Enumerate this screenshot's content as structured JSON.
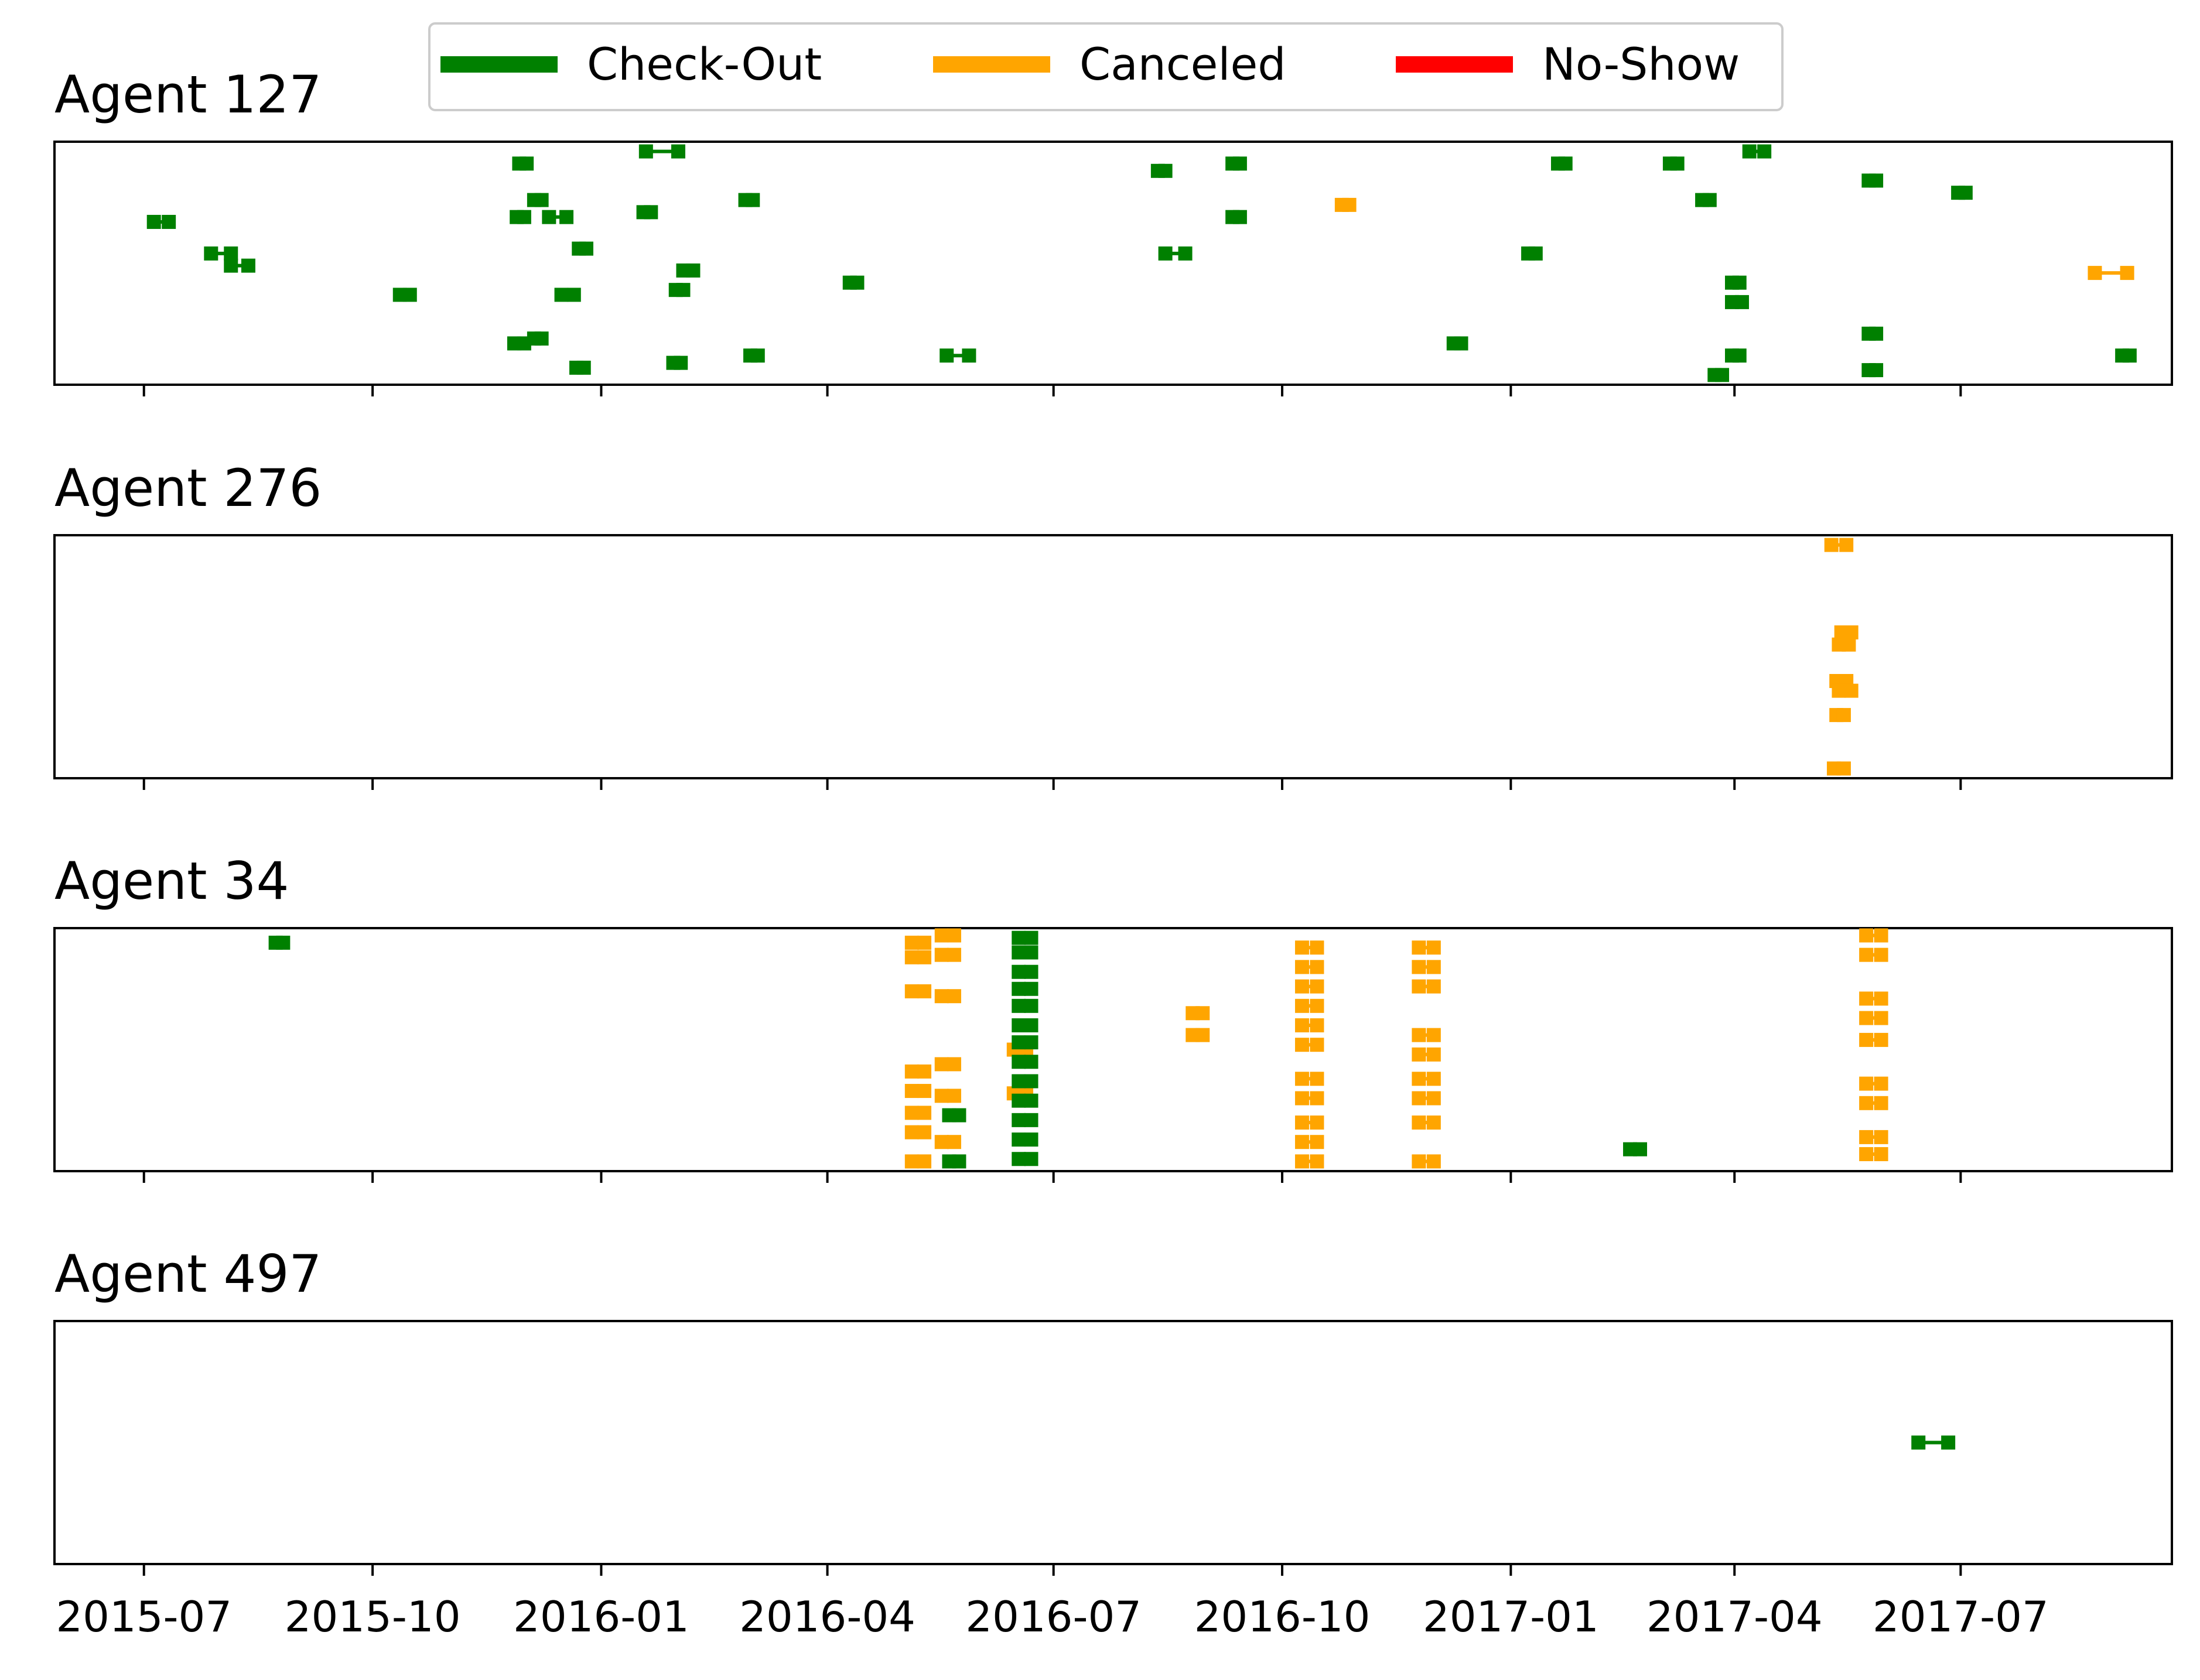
{
  "chart_data": {
    "type": "scatter",
    "legend": {
      "placement": "top-center",
      "items": [
        {
          "label": "Check-Out",
          "color": "#008000"
        },
        {
          "label": "Canceled",
          "color": "#ffa500"
        },
        {
          "label": "No-Show",
          "color": "#ff0000"
        }
      ]
    },
    "x_axis": {
      "range": [
        "2015-05-26",
        "2017-09-24"
      ],
      "ticks": [
        "2015-07-01",
        "2015-10-01",
        "2016-01-01",
        "2016-04-01",
        "2016-07-01",
        "2016-10-01",
        "2017-01-01",
        "2017-04-01",
        "2017-07-01"
      ],
      "tick_labels": [
        "2015-07",
        "2015-10",
        "2016-01",
        "2016-04",
        "2016-07",
        "2016-10",
        "2017-01",
        "2017-04",
        "2017-07"
      ]
    },
    "y_axis": {
      "range": [
        0,
        1
      ],
      "ticks": []
    },
    "grid": false,
    "panels": [
      {
        "title": "Agent 127",
        "stays": [
          {
            "start": "2015-07-05",
            "end": "2015-07-11",
            "y": 0.67,
            "status": "Check-Out"
          },
          {
            "start": "2015-07-28",
            "end": "2015-08-05",
            "y": 0.54,
            "status": "Check-Out"
          },
          {
            "start": "2015-08-05",
            "end": "2015-08-12",
            "y": 0.49,
            "status": "Check-Out"
          },
          {
            "start": "2015-10-12",
            "end": "2015-10-16",
            "y": 0.37,
            "status": "Check-Out"
          },
          {
            "start": "2015-11-27",
            "end": "2015-12-01",
            "y": 0.17,
            "status": "Check-Out"
          },
          {
            "start": "2015-11-28",
            "end": "2015-12-01",
            "y": 0.69,
            "status": "Check-Out"
          },
          {
            "start": "2015-11-29",
            "end": "2015-12-02",
            "y": 0.91,
            "status": "Check-Out"
          },
          {
            "start": "2015-12-05",
            "end": "2015-12-08",
            "y": 0.19,
            "status": "Check-Out"
          },
          {
            "start": "2015-12-05",
            "end": "2015-12-08",
            "y": 0.76,
            "status": "Check-Out"
          },
          {
            "start": "2015-12-11",
            "end": "2015-12-18",
            "y": 0.69,
            "status": "Check-Out"
          },
          {
            "start": "2015-12-16",
            "end": "2015-12-21",
            "y": 0.37,
            "status": "Check-Out"
          },
          {
            "start": "2015-12-22",
            "end": "2015-12-25",
            "y": 0.07,
            "status": "Check-Out"
          },
          {
            "start": "2015-12-23",
            "end": "2015-12-26",
            "y": 0.56,
            "status": "Check-Out"
          },
          {
            "start": "2016-01-18",
            "end": "2016-01-21",
            "y": 0.71,
            "status": "Check-Out"
          },
          {
            "start": "2016-01-19",
            "end": "2016-02-01",
            "y": 0.96,
            "status": "Check-Out"
          },
          {
            "start": "2016-01-30",
            "end": "2016-02-02",
            "y": 0.09,
            "status": "Check-Out"
          },
          {
            "start": "2016-01-31",
            "end": "2016-02-03",
            "y": 0.39,
            "status": "Check-Out"
          },
          {
            "start": "2016-02-03",
            "end": "2016-02-07",
            "y": 0.47,
            "status": "Check-Out"
          },
          {
            "start": "2016-02-28",
            "end": "2016-03-02",
            "y": 0.76,
            "status": "Check-Out"
          },
          {
            "start": "2016-03-01",
            "end": "2016-03-04",
            "y": 0.12,
            "status": "Check-Out"
          },
          {
            "start": "2016-04-10",
            "end": "2016-04-13",
            "y": 0.42,
            "status": "Check-Out"
          },
          {
            "start": "2016-05-19",
            "end": "2016-05-28",
            "y": 0.12,
            "status": "Check-Out"
          },
          {
            "start": "2016-08-12",
            "end": "2016-08-15",
            "y": 0.88,
            "status": "Check-Out"
          },
          {
            "start": "2016-08-15",
            "end": "2016-08-23",
            "y": 0.54,
            "status": "Check-Out"
          },
          {
            "start": "2016-09-11",
            "end": "2016-09-14",
            "y": 0.91,
            "status": "Check-Out"
          },
          {
            "start": "2016-09-11",
            "end": "2016-09-14",
            "y": 0.69,
            "status": "Check-Out"
          },
          {
            "start": "2016-10-25",
            "end": "2016-10-28",
            "y": 0.74,
            "status": "Canceled"
          },
          {
            "start": "2016-12-09",
            "end": "2016-12-12",
            "y": 0.17,
            "status": "Check-Out"
          },
          {
            "start": "2017-01-08",
            "end": "2017-01-11",
            "y": 0.54,
            "status": "Check-Out"
          },
          {
            "start": "2017-01-20",
            "end": "2017-01-23",
            "y": 0.91,
            "status": "Check-Out"
          },
          {
            "start": "2017-03-06",
            "end": "2017-03-09",
            "y": 0.91,
            "status": "Check-Out"
          },
          {
            "start": "2017-03-19",
            "end": "2017-03-22",
            "y": 0.76,
            "status": "Check-Out"
          },
          {
            "start": "2017-03-24",
            "end": "2017-03-27",
            "y": 0.04,
            "status": "Check-Out"
          },
          {
            "start": "2017-03-31",
            "end": "2017-04-03",
            "y": 0.12,
            "status": "Check-Out"
          },
          {
            "start": "2017-03-31",
            "end": "2017-04-03",
            "y": 0.42,
            "status": "Check-Out"
          },
          {
            "start": "2017-03-31",
            "end": "2017-04-04",
            "y": 0.34,
            "status": "Check-Out"
          },
          {
            "start": "2017-04-07",
            "end": "2017-04-13",
            "y": 0.96,
            "status": "Check-Out"
          },
          {
            "start": "2017-05-25",
            "end": "2017-05-28",
            "y": 0.84,
            "status": "Check-Out"
          },
          {
            "start": "2017-05-25",
            "end": "2017-05-28",
            "y": 0.21,
            "status": "Check-Out"
          },
          {
            "start": "2017-05-25",
            "end": "2017-05-28",
            "y": 0.06,
            "status": "Check-Out"
          },
          {
            "start": "2017-06-30",
            "end": "2017-07-03",
            "y": 0.79,
            "status": "Check-Out"
          },
          {
            "start": "2017-08-24",
            "end": "2017-09-06",
            "y": 0.46,
            "status": "Canceled"
          },
          {
            "start": "2017-09-04",
            "end": "2017-09-07",
            "y": 0.12,
            "status": "Check-Out"
          }
        ]
      },
      {
        "title": "Agent 276",
        "stays": [
          {
            "start": "2017-05-10",
            "end": "2017-05-16",
            "y": 0.96,
            "status": "Canceled"
          },
          {
            "start": "2017-05-14",
            "end": "2017-05-18",
            "y": 0.6,
            "status": "Canceled"
          },
          {
            "start": "2017-05-13",
            "end": "2017-05-17",
            "y": 0.55,
            "status": "Canceled"
          },
          {
            "start": "2017-05-12",
            "end": "2017-05-16",
            "y": 0.4,
            "status": "Canceled"
          },
          {
            "start": "2017-05-13",
            "end": "2017-05-18",
            "y": 0.36,
            "status": "Canceled"
          },
          {
            "start": "2017-05-12",
            "end": "2017-05-15",
            "y": 0.26,
            "status": "Canceled"
          },
          {
            "start": "2017-05-11",
            "end": "2017-05-15",
            "y": 0.04,
            "status": "Canceled"
          }
        ]
      },
      {
        "title": "Agent 34",
        "stays": [
          {
            "start": "2015-08-23",
            "end": "2015-08-26",
            "y": 0.94,
            "status": "Check-Out"
          },
          {
            "start": "2016-05-05",
            "end": "2016-05-10",
            "y": 0.94,
            "status": "Canceled"
          },
          {
            "start": "2016-05-05",
            "end": "2016-05-10",
            "y": 0.88,
            "status": "Canceled"
          },
          {
            "start": "2016-05-05",
            "end": "2016-05-10",
            "y": 0.74,
            "status": "Canceled"
          },
          {
            "start": "2016-05-05",
            "end": "2016-05-10",
            "y": 0.41,
            "status": "Canceled"
          },
          {
            "start": "2016-05-05",
            "end": "2016-05-10",
            "y": 0.33,
            "status": "Canceled"
          },
          {
            "start": "2016-05-05",
            "end": "2016-05-10",
            "y": 0.24,
            "status": "Canceled"
          },
          {
            "start": "2016-05-05",
            "end": "2016-05-10",
            "y": 0.16,
            "status": "Canceled"
          },
          {
            "start": "2016-05-05",
            "end": "2016-05-10",
            "y": 0.04,
            "status": "Canceled"
          },
          {
            "start": "2016-05-17",
            "end": "2016-05-22",
            "y": 0.97,
            "status": "Canceled"
          },
          {
            "start": "2016-05-17",
            "end": "2016-05-22",
            "y": 0.89,
            "status": "Canceled"
          },
          {
            "start": "2016-05-17",
            "end": "2016-05-22",
            "y": 0.72,
            "status": "Canceled"
          },
          {
            "start": "2016-05-17",
            "end": "2016-05-22",
            "y": 0.44,
            "status": "Canceled"
          },
          {
            "start": "2016-05-17",
            "end": "2016-05-22",
            "y": 0.31,
            "status": "Canceled"
          },
          {
            "start": "2016-05-17",
            "end": "2016-05-22",
            "y": 0.12,
            "status": "Canceled"
          },
          {
            "start": "2016-05-20",
            "end": "2016-05-24",
            "y": 0.23,
            "status": "Check-Out"
          },
          {
            "start": "2016-05-20",
            "end": "2016-05-24",
            "y": 0.04,
            "status": "Check-Out"
          },
          {
            "start": "2016-06-15",
            "end": "2016-06-20",
            "y": 0.5,
            "status": "Canceled"
          },
          {
            "start": "2016-06-15",
            "end": "2016-06-20",
            "y": 0.32,
            "status": "Canceled"
          },
          {
            "start": "2016-06-17",
            "end": "2016-06-22",
            "y": 0.96,
            "status": "Check-Out"
          },
          {
            "start": "2016-06-17",
            "end": "2016-06-22",
            "y": 0.9,
            "status": "Check-Out"
          },
          {
            "start": "2016-06-17",
            "end": "2016-06-22",
            "y": 0.82,
            "status": "Check-Out"
          },
          {
            "start": "2016-06-17",
            "end": "2016-06-22",
            "y": 0.75,
            "status": "Check-Out"
          },
          {
            "start": "2016-06-17",
            "end": "2016-06-22",
            "y": 0.68,
            "status": "Check-Out"
          },
          {
            "start": "2016-06-17",
            "end": "2016-06-22",
            "y": 0.6,
            "status": "Check-Out"
          },
          {
            "start": "2016-06-17",
            "end": "2016-06-22",
            "y": 0.53,
            "status": "Check-Out"
          },
          {
            "start": "2016-06-17",
            "end": "2016-06-22",
            "y": 0.45,
            "status": "Check-Out"
          },
          {
            "start": "2016-06-17",
            "end": "2016-06-22",
            "y": 0.37,
            "status": "Check-Out"
          },
          {
            "start": "2016-06-17",
            "end": "2016-06-22",
            "y": 0.29,
            "status": "Check-Out"
          },
          {
            "start": "2016-06-17",
            "end": "2016-06-22",
            "y": 0.21,
            "status": "Check-Out"
          },
          {
            "start": "2016-06-17",
            "end": "2016-06-22",
            "y": 0.13,
            "status": "Check-Out"
          },
          {
            "start": "2016-06-17",
            "end": "2016-06-22",
            "y": 0.05,
            "status": "Check-Out"
          },
          {
            "start": "2016-08-26",
            "end": "2016-08-30",
            "y": 0.65,
            "status": "Canceled"
          },
          {
            "start": "2016-08-26",
            "end": "2016-08-30",
            "y": 0.56,
            "status": "Canceled"
          },
          {
            "start": "2016-10-09",
            "end": "2016-10-15",
            "y": 0.92,
            "status": "Canceled"
          },
          {
            "start": "2016-10-09",
            "end": "2016-10-15",
            "y": 0.84,
            "status": "Canceled"
          },
          {
            "start": "2016-10-09",
            "end": "2016-10-15",
            "y": 0.76,
            "status": "Canceled"
          },
          {
            "start": "2016-10-09",
            "end": "2016-10-15",
            "y": 0.68,
            "status": "Canceled"
          },
          {
            "start": "2016-10-09",
            "end": "2016-10-15",
            "y": 0.6,
            "status": "Canceled"
          },
          {
            "start": "2016-10-09",
            "end": "2016-10-15",
            "y": 0.52,
            "status": "Canceled"
          },
          {
            "start": "2016-10-09",
            "end": "2016-10-15",
            "y": 0.38,
            "status": "Canceled"
          },
          {
            "start": "2016-10-09",
            "end": "2016-10-15",
            "y": 0.3,
            "status": "Canceled"
          },
          {
            "start": "2016-10-09",
            "end": "2016-10-15",
            "y": 0.2,
            "status": "Canceled"
          },
          {
            "start": "2016-10-09",
            "end": "2016-10-15",
            "y": 0.12,
            "status": "Canceled"
          },
          {
            "start": "2016-10-09",
            "end": "2016-10-15",
            "y": 0.04,
            "status": "Canceled"
          },
          {
            "start": "2016-11-25",
            "end": "2016-12-01",
            "y": 0.92,
            "status": "Canceled"
          },
          {
            "start": "2016-11-25",
            "end": "2016-12-01",
            "y": 0.84,
            "status": "Canceled"
          },
          {
            "start": "2016-11-25",
            "end": "2016-12-01",
            "y": 0.76,
            "status": "Canceled"
          },
          {
            "start": "2016-11-25",
            "end": "2016-12-01",
            "y": 0.56,
            "status": "Canceled"
          },
          {
            "start": "2016-11-25",
            "end": "2016-12-01",
            "y": 0.48,
            "status": "Canceled"
          },
          {
            "start": "2016-11-25",
            "end": "2016-12-01",
            "y": 0.38,
            "status": "Canceled"
          },
          {
            "start": "2016-11-25",
            "end": "2016-12-01",
            "y": 0.3,
            "status": "Canceled"
          },
          {
            "start": "2016-11-25",
            "end": "2016-12-01",
            "y": 0.2,
            "status": "Canceled"
          },
          {
            "start": "2016-11-25",
            "end": "2016-12-01",
            "y": 0.04,
            "status": "Canceled"
          },
          {
            "start": "2017-02-18",
            "end": "2017-02-22",
            "y": 0.09,
            "status": "Check-Out"
          },
          {
            "start": "2017-05-24",
            "end": "2017-05-30",
            "y": 0.97,
            "status": "Canceled"
          },
          {
            "start": "2017-05-24",
            "end": "2017-05-30",
            "y": 0.89,
            "status": "Canceled"
          },
          {
            "start": "2017-05-24",
            "end": "2017-05-30",
            "y": 0.71,
            "status": "Canceled"
          },
          {
            "start": "2017-05-24",
            "end": "2017-05-30",
            "y": 0.63,
            "status": "Canceled"
          },
          {
            "start": "2017-05-24",
            "end": "2017-05-30",
            "y": 0.54,
            "status": "Canceled"
          },
          {
            "start": "2017-05-24",
            "end": "2017-05-30",
            "y": 0.36,
            "status": "Canceled"
          },
          {
            "start": "2017-05-24",
            "end": "2017-05-30",
            "y": 0.28,
            "status": "Canceled"
          },
          {
            "start": "2017-05-24",
            "end": "2017-05-30",
            "y": 0.14,
            "status": "Canceled"
          },
          {
            "start": "2017-05-24",
            "end": "2017-05-30",
            "y": 0.07,
            "status": "Canceled"
          }
        ]
      },
      {
        "title": "Agent 497",
        "stays": [
          {
            "start": "2017-06-14",
            "end": "2017-06-26",
            "y": 0.5,
            "status": "Check-Out"
          }
        ]
      }
    ]
  }
}
